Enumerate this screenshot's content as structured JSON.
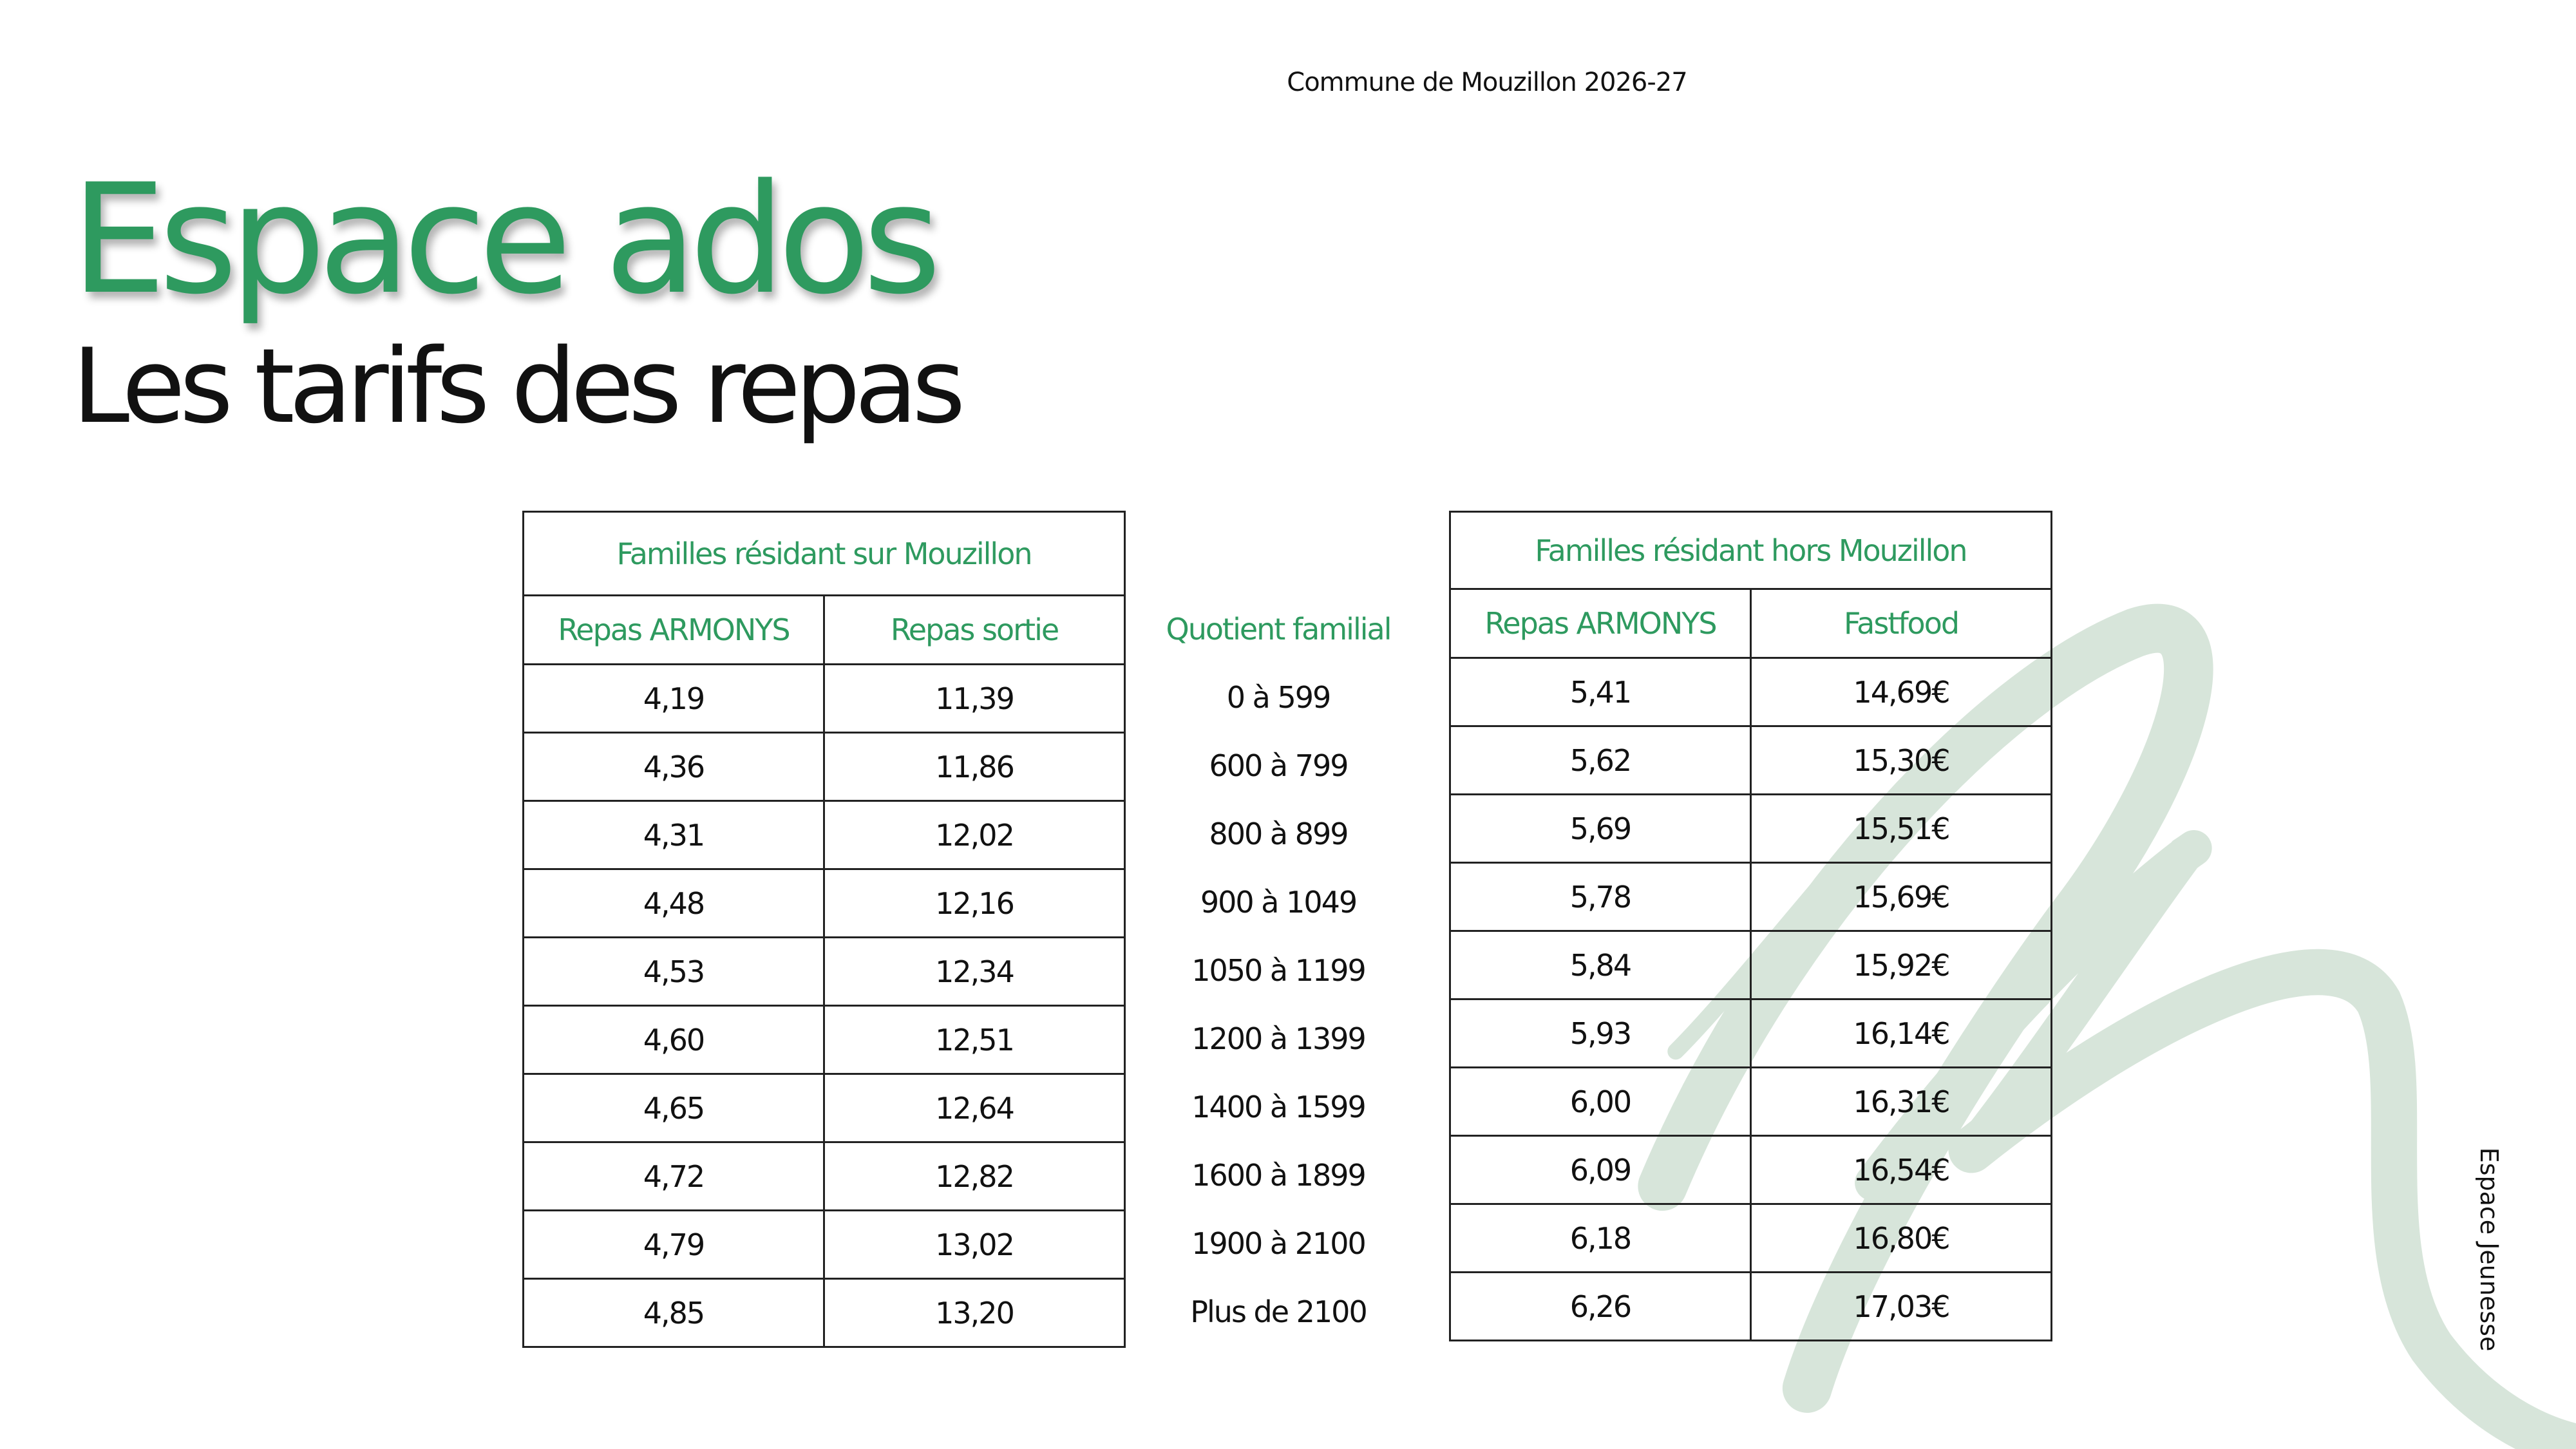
{
  "header": "Commune de Mouzillon 2026-27",
  "title": "Espace ados",
  "subtitle": "Les tarifs des repas",
  "resident_table": {
    "title": "Familles résidant sur Mouzillon",
    "columns": [
      "Repas ARMONYS",
      "Repas sortie"
    ],
    "rows": [
      [
        "4,19",
        "11,39"
      ],
      [
        "4,36",
        "11,86"
      ],
      [
        "4,31",
        "12,02"
      ],
      [
        "4,48",
        "12,16"
      ],
      [
        "4,53",
        "12,34"
      ],
      [
        "4,60",
        "12,51"
      ],
      [
        "4,65",
        "12,64"
      ],
      [
        "4,72",
        "12,82"
      ],
      [
        "4,79",
        "13,02"
      ],
      [
        "4,85",
        "13,20"
      ]
    ]
  },
  "quotient": {
    "title": "Quotient familial",
    "rows": [
      "0 à 599",
      "600 à 799",
      "800 à 899",
      "900 à 1049",
      "1050 à 1199",
      "1200 à 1399",
      "1400 à 1599",
      "1600 à 1899",
      "1900 à 2100",
      "Plus de 2100"
    ]
  },
  "non_resident_table": {
    "title": "Familles résidant hors Mouzillon",
    "columns": [
      "Repas ARMONYS",
      "Fastfood"
    ],
    "rows": [
      [
        "5,41",
        "14,69€"
      ],
      [
        "5,62",
        "15,30€"
      ],
      [
        "5,69",
        "15,51€"
      ],
      [
        "5,78",
        "15,69€"
      ],
      [
        "5,84",
        "15,92€"
      ],
      [
        "5,93",
        "16,14€"
      ],
      [
        "6,00",
        "16,31€"
      ],
      [
        "6,09",
        "16,54€"
      ],
      [
        "6,18",
        "16,80€"
      ],
      [
        "6,26",
        "17,03€"
      ]
    ]
  },
  "side_label": "Espace Jeunesse"
}
